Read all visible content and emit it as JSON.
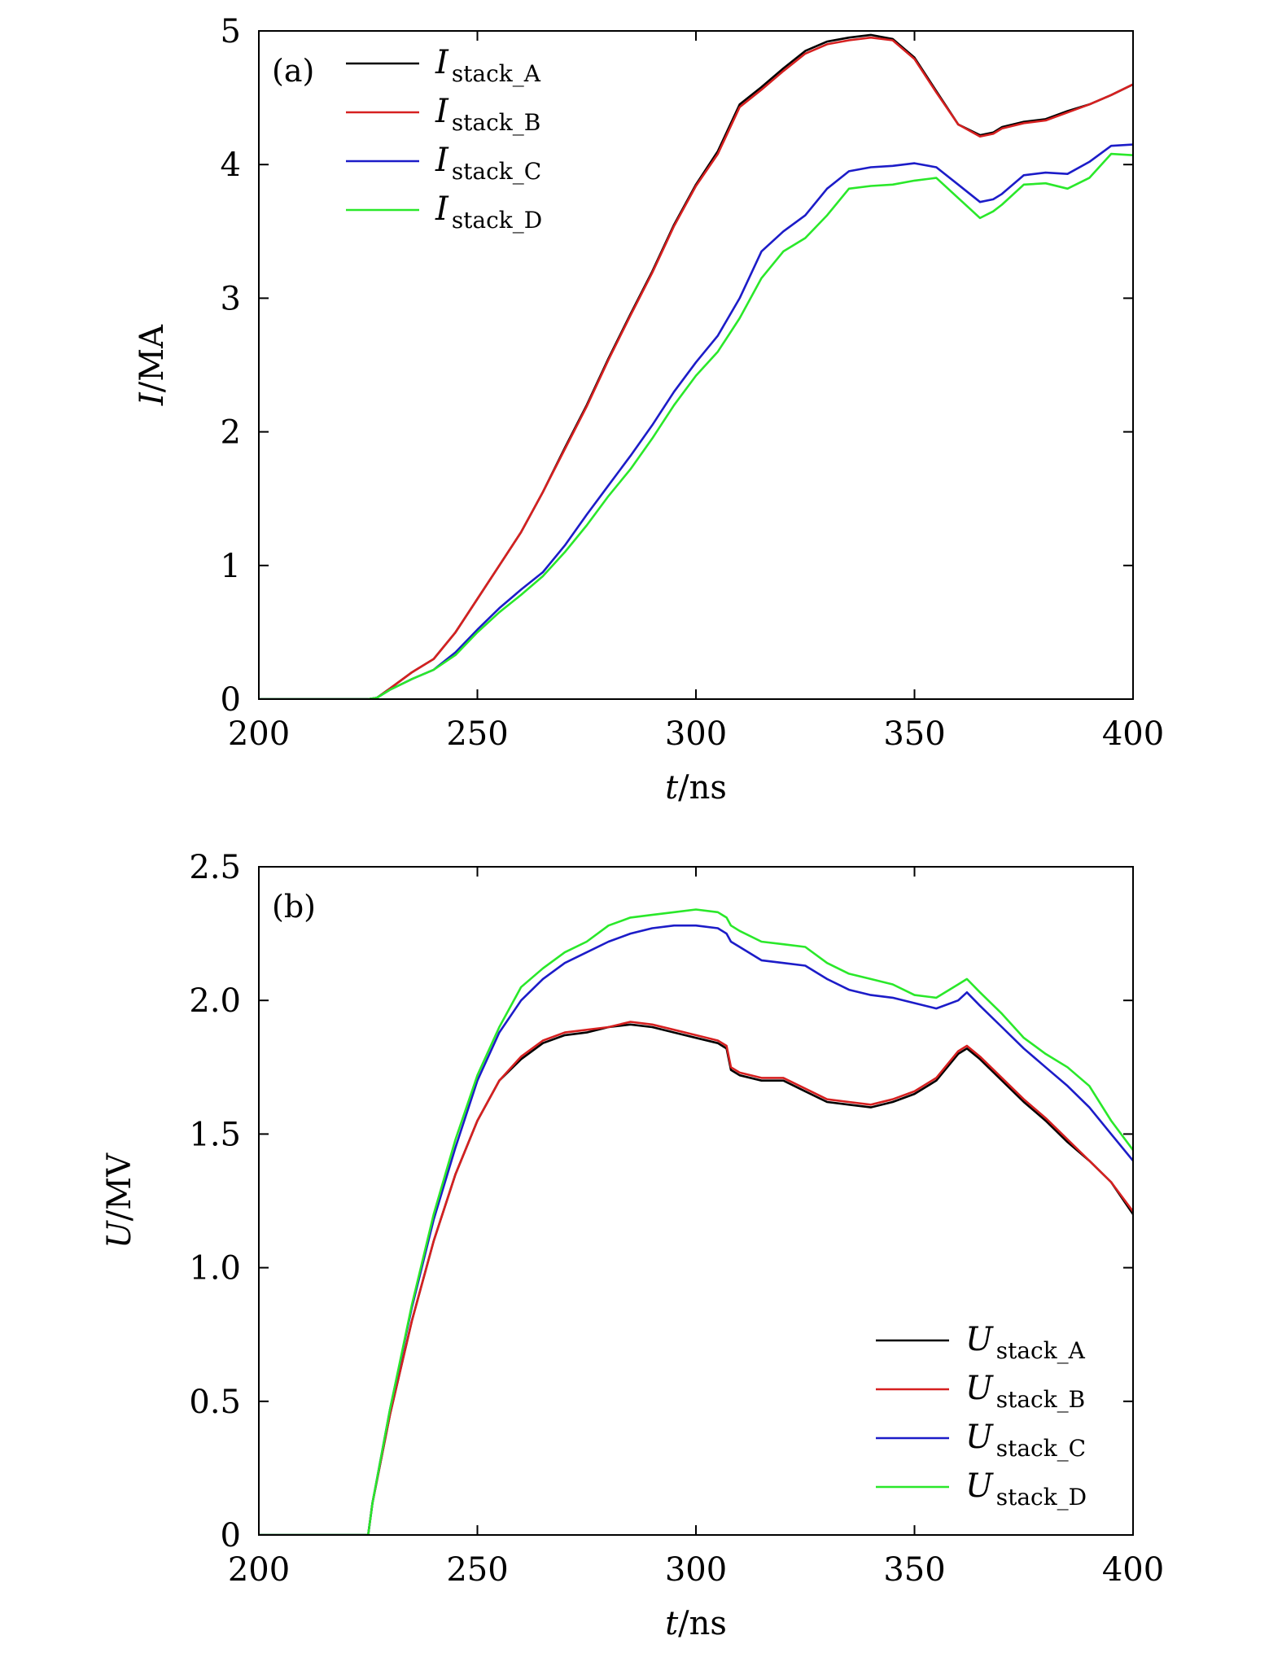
{
  "chart_data": [
    {
      "type": "line",
      "panel_label": "(a)",
      "xlabel": {
        "symbol": "t",
        "unit": "/ns"
      },
      "ylabel": {
        "symbol": "I",
        "unit": "/MA"
      },
      "xlim": [
        200,
        400
      ],
      "ylim": [
        0,
        5
      ],
      "xticks": [
        "200",
        "250",
        "300",
        "350",
        "400"
      ],
      "yticks": [
        "0",
        "1",
        "2",
        "3",
        "4",
        "5"
      ],
      "legend_position": "top-left",
      "series": [
        {
          "name": "I",
          "sub": "stack_A",
          "color": "#000000",
          "x": [
            200,
            225,
            227,
            230,
            235,
            240,
            245,
            250,
            255,
            260,
            265,
            270,
            275,
            280,
            285,
            290,
            295,
            300,
            305,
            310,
            315,
            320,
            325,
            330,
            335,
            340,
            345,
            350,
            355,
            360,
            365,
            368,
            370,
            375,
            380,
            385,
            390,
            395,
            400
          ],
          "y": [
            0,
            0,
            0.01,
            0.08,
            0.2,
            0.3,
            0.5,
            0.75,
            1.0,
            1.25,
            1.55,
            1.88,
            2.2,
            2.55,
            2.88,
            3.2,
            3.55,
            3.85,
            4.1,
            4.45,
            4.58,
            4.72,
            4.85,
            4.92,
            4.95,
            4.97,
            4.94,
            4.8,
            4.55,
            4.3,
            4.22,
            4.24,
            4.28,
            4.32,
            4.34,
            4.4,
            4.45,
            4.52,
            4.6
          ]
        },
        {
          "name": "I",
          "sub": "stack_B",
          "color": "#d62020",
          "x": [
            200,
            225,
            227,
            230,
            235,
            240,
            245,
            250,
            255,
            260,
            265,
            270,
            275,
            280,
            285,
            290,
            295,
            300,
            305,
            310,
            315,
            320,
            325,
            330,
            335,
            340,
            345,
            350,
            355,
            360,
            365,
            368,
            370,
            375,
            380,
            385,
            390,
            395,
            400
          ],
          "y": [
            0,
            0,
            0.01,
            0.08,
            0.2,
            0.3,
            0.5,
            0.75,
            1.0,
            1.25,
            1.55,
            1.87,
            2.19,
            2.54,
            2.87,
            3.19,
            3.54,
            3.84,
            4.08,
            4.43,
            4.56,
            4.7,
            4.83,
            4.9,
            4.93,
            4.95,
            4.93,
            4.79,
            4.54,
            4.3,
            4.21,
            4.23,
            4.27,
            4.31,
            4.33,
            4.39,
            4.45,
            4.52,
            4.6
          ]
        },
        {
          "name": "I",
          "sub": "stack_C",
          "color": "#1c1cc8",
          "x": [
            200,
            225,
            227,
            230,
            235,
            240,
            245,
            250,
            255,
            260,
            265,
            270,
            275,
            280,
            285,
            290,
            295,
            300,
            305,
            310,
            315,
            320,
            325,
            330,
            335,
            340,
            345,
            350,
            355,
            360,
            365,
            368,
            370,
            375,
            380,
            385,
            390,
            395,
            400
          ],
          "y": [
            0,
            0,
            0.01,
            0.07,
            0.15,
            0.22,
            0.35,
            0.52,
            0.68,
            0.82,
            0.95,
            1.15,
            1.38,
            1.6,
            1.82,
            2.05,
            2.3,
            2.52,
            2.72,
            3.0,
            3.35,
            3.5,
            3.62,
            3.82,
            3.95,
            3.98,
            3.99,
            4.01,
            3.98,
            3.85,
            3.72,
            3.74,
            3.78,
            3.92,
            3.94,
            3.93,
            4.02,
            4.14,
            4.15
          ]
        },
        {
          "name": "I",
          "sub": "stack_D",
          "color": "#2ae82a",
          "x": [
            200,
            225,
            227,
            230,
            235,
            240,
            245,
            250,
            255,
            260,
            265,
            270,
            275,
            280,
            285,
            290,
            295,
            300,
            305,
            310,
            315,
            320,
            325,
            330,
            335,
            340,
            345,
            350,
            355,
            360,
            365,
            368,
            370,
            375,
            380,
            385,
            390,
            395,
            400
          ],
          "y": [
            0,
            0,
            0.01,
            0.07,
            0.15,
            0.22,
            0.33,
            0.5,
            0.65,
            0.78,
            0.92,
            1.1,
            1.3,
            1.52,
            1.72,
            1.95,
            2.2,
            2.42,
            2.6,
            2.85,
            3.15,
            3.35,
            3.45,
            3.62,
            3.82,
            3.84,
            3.85,
            3.88,
            3.9,
            3.75,
            3.6,
            3.65,
            3.7,
            3.85,
            3.86,
            3.82,
            3.9,
            4.08,
            4.07
          ]
        }
      ]
    },
    {
      "type": "line",
      "panel_label": "(b)",
      "xlabel": {
        "symbol": "t",
        "unit": "/ns"
      },
      "ylabel": {
        "symbol": "U",
        "unit": "/MV"
      },
      "xlim": [
        200,
        400
      ],
      "ylim": [
        0,
        2.5
      ],
      "xticks": [
        "200",
        "250",
        "300",
        "350",
        "400"
      ],
      "yticks": [
        "0",
        "0.5",
        "1.0",
        "1.5",
        "2.0",
        "2.5"
      ],
      "legend_position": "bottom-right",
      "series": [
        {
          "name": "U",
          "sub": "stack_A",
          "color": "#000000",
          "x": [
            200,
            225,
            226,
            230,
            235,
            240,
            245,
            250,
            255,
            260,
            265,
            270,
            275,
            280,
            285,
            290,
            295,
            300,
            305,
            307,
            308,
            310,
            315,
            320,
            325,
            330,
            335,
            340,
            345,
            350,
            355,
            360,
            362,
            365,
            370,
            375,
            380,
            385,
            390,
            395,
            400
          ],
          "y": [
            0,
            0,
            0.12,
            0.45,
            0.8,
            1.1,
            1.35,
            1.55,
            1.7,
            1.78,
            1.84,
            1.87,
            1.88,
            1.9,
            1.91,
            1.9,
            1.88,
            1.86,
            1.84,
            1.82,
            1.74,
            1.72,
            1.7,
            1.7,
            1.66,
            1.62,
            1.61,
            1.6,
            1.62,
            1.65,
            1.7,
            1.8,
            1.82,
            1.78,
            1.7,
            1.62,
            1.55,
            1.47,
            1.4,
            1.32,
            1.2
          ]
        },
        {
          "name": "U",
          "sub": "stack_B",
          "color": "#d62020",
          "x": [
            200,
            225,
            226,
            230,
            235,
            240,
            245,
            250,
            255,
            260,
            265,
            270,
            275,
            280,
            285,
            290,
            295,
            300,
            305,
            307,
            308,
            310,
            315,
            320,
            325,
            330,
            335,
            340,
            345,
            350,
            355,
            360,
            362,
            365,
            370,
            375,
            380,
            385,
            390,
            395,
            400
          ],
          "y": [
            0,
            0,
            0.12,
            0.45,
            0.8,
            1.1,
            1.35,
            1.55,
            1.7,
            1.79,
            1.85,
            1.88,
            1.89,
            1.9,
            1.92,
            1.91,
            1.89,
            1.87,
            1.85,
            1.83,
            1.75,
            1.73,
            1.71,
            1.71,
            1.67,
            1.63,
            1.62,
            1.61,
            1.63,
            1.66,
            1.71,
            1.81,
            1.83,
            1.79,
            1.71,
            1.63,
            1.56,
            1.48,
            1.4,
            1.32,
            1.21
          ]
        },
        {
          "name": "U",
          "sub": "stack_C",
          "color": "#1c1cc8",
          "x": [
            200,
            225,
            226,
            230,
            235,
            240,
            245,
            250,
            255,
            260,
            265,
            270,
            275,
            280,
            285,
            290,
            295,
            300,
            305,
            307,
            308,
            310,
            315,
            320,
            325,
            330,
            335,
            340,
            345,
            350,
            355,
            360,
            362,
            365,
            370,
            375,
            380,
            385,
            390,
            395,
            400
          ],
          "y": [
            0,
            0,
            0.12,
            0.47,
            0.85,
            1.18,
            1.45,
            1.7,
            1.88,
            2.0,
            2.08,
            2.14,
            2.18,
            2.22,
            2.25,
            2.27,
            2.28,
            2.28,
            2.27,
            2.25,
            2.22,
            2.2,
            2.15,
            2.14,
            2.13,
            2.08,
            2.04,
            2.02,
            2.01,
            1.99,
            1.97,
            2.0,
            2.03,
            1.98,
            1.9,
            1.82,
            1.75,
            1.68,
            1.6,
            1.5,
            1.4
          ]
        },
        {
          "name": "U",
          "sub": "stack_D",
          "color": "#2ae82a",
          "x": [
            200,
            225,
            226,
            230,
            235,
            240,
            245,
            250,
            255,
            260,
            265,
            270,
            275,
            280,
            285,
            290,
            295,
            300,
            305,
            307,
            308,
            310,
            315,
            320,
            325,
            330,
            335,
            340,
            345,
            350,
            355,
            360,
            362,
            365,
            370,
            375,
            380,
            385,
            390,
            395,
            400
          ],
          "y": [
            0,
            0,
            0.12,
            0.47,
            0.86,
            1.2,
            1.48,
            1.72,
            1.9,
            2.05,
            2.12,
            2.18,
            2.22,
            2.28,
            2.31,
            2.32,
            2.33,
            2.34,
            2.33,
            2.31,
            2.28,
            2.26,
            2.22,
            2.21,
            2.2,
            2.14,
            2.1,
            2.08,
            2.06,
            2.02,
            2.01,
            2.06,
            2.08,
            2.03,
            1.95,
            1.86,
            1.8,
            1.75,
            1.68,
            1.55,
            1.44
          ]
        }
      ]
    }
  ]
}
